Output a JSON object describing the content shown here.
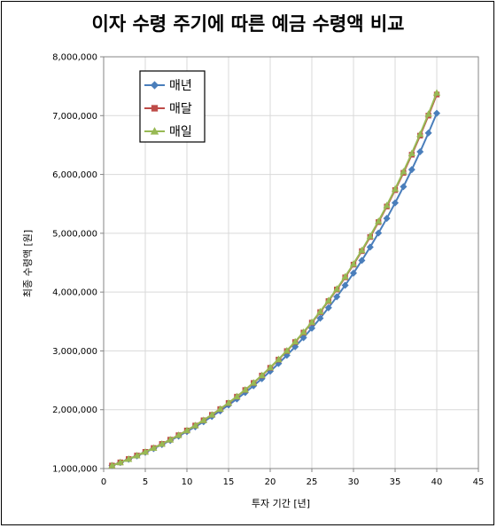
{
  "chart_data": {
    "type": "line",
    "title": "이자 수령 주기에 따른 예금 수령액 비교",
    "xlabel": "투자 기간 [년]",
    "ylabel": "최종 수령액 [원]",
    "xlim": [
      0,
      45
    ],
    "ylim": [
      1000000,
      8000000
    ],
    "x_ticks": [
      0,
      5,
      10,
      15,
      20,
      25,
      30,
      35,
      40,
      45
    ],
    "x_tick_labels": [
      "0",
      "5",
      "10",
      "15",
      "20",
      "25",
      "30",
      "35",
      "40",
      "45"
    ],
    "y_ticks": [
      1000000,
      2000000,
      3000000,
      4000000,
      5000000,
      6000000,
      7000000,
      8000000
    ],
    "y_tick_labels": [
      "1,000,000",
      "2,000,000",
      "3,000,000",
      "4,000,000",
      "5,000,000",
      "6,000,000",
      "7,000,000",
      "8,000,000"
    ],
    "grid": true,
    "legend_position": "top-left",
    "x": [
      1,
      2,
      3,
      4,
      5,
      6,
      7,
      8,
      9,
      10,
      11,
      12,
      13,
      14,
      15,
      16,
      17,
      18,
      19,
      20,
      21,
      22,
      23,
      24,
      25,
      26,
      27,
      28,
      29,
      30,
      31,
      32,
      33,
      34,
      35,
      36,
      37,
      38,
      39,
      40
    ],
    "series": [
      {
        "name": "매년",
        "color": "#4a7ebb",
        "marker": "diamond",
        "values": [
          1050000,
          1102500,
          1157625,
          1215506,
          1276282,
          1340096,
          1407100,
          1477455,
          1551328,
          1628895,
          1710339,
          1795856,
          1885649,
          1979932,
          2078928,
          2182875,
          2292018,
          2406619,
          2526950,
          2653298,
          2785963,
          2925261,
          3071524,
          3225100,
          3386355,
          3555673,
          3733456,
          3920129,
          4116136,
          4321942,
          4538039,
          4764941,
          5003189,
          5253348,
          5516015,
          5791816,
          6081407,
          6385477,
          6704751,
          7039989
        ]
      },
      {
        "name": "매달",
        "color": "#be4b48",
        "marker": "square",
        "values": [
          1051162,
          1104941,
          1161472,
          1220895,
          1283359,
          1349018,
          1418036,
          1490585,
          1566847,
          1647009,
          1731274,
          1819849,
          1912956,
          2010826,
          2113704,
          2221845,
          2335519,
          2455008,
          2580611,
          2712640,
          2851424,
          2997309,
          3150656,
          3311850,
          3481290,
          3659399,
          3846620,
          4043420,
          4250288,
          4467744,
          4696326,
          4936603,
          5189172,
          5454663,
          5733737,
          6027089,
          6335450,
          6659587,
          7000307,
          7358459
        ]
      },
      {
        "name": "매일",
        "color": "#98b954",
        "marker": "triangle",
        "values": [
          1051267,
          1105162,
          1161820,
          1221382,
          1283997,
          1349822,
          1419022,
          1491771,
          1568248,
          1648646,
          1733158,
          1822030,
          1915432,
          2013622,
          2116849,
          2225370,
          2339457,
          2459385,
          2585464,
          2718000,
          2857324,
          3003802,
          3157796,
          3319685,
          3489875,
          3668789,
          3856873,
          4054601,
          4262466,
          4480994,
          4710728,
          4952228,
          5206102,
          5472989,
          5753559,
          6048523,
          6358607,
          6684591,
          7027301,
          7387615
        ]
      }
    ]
  }
}
